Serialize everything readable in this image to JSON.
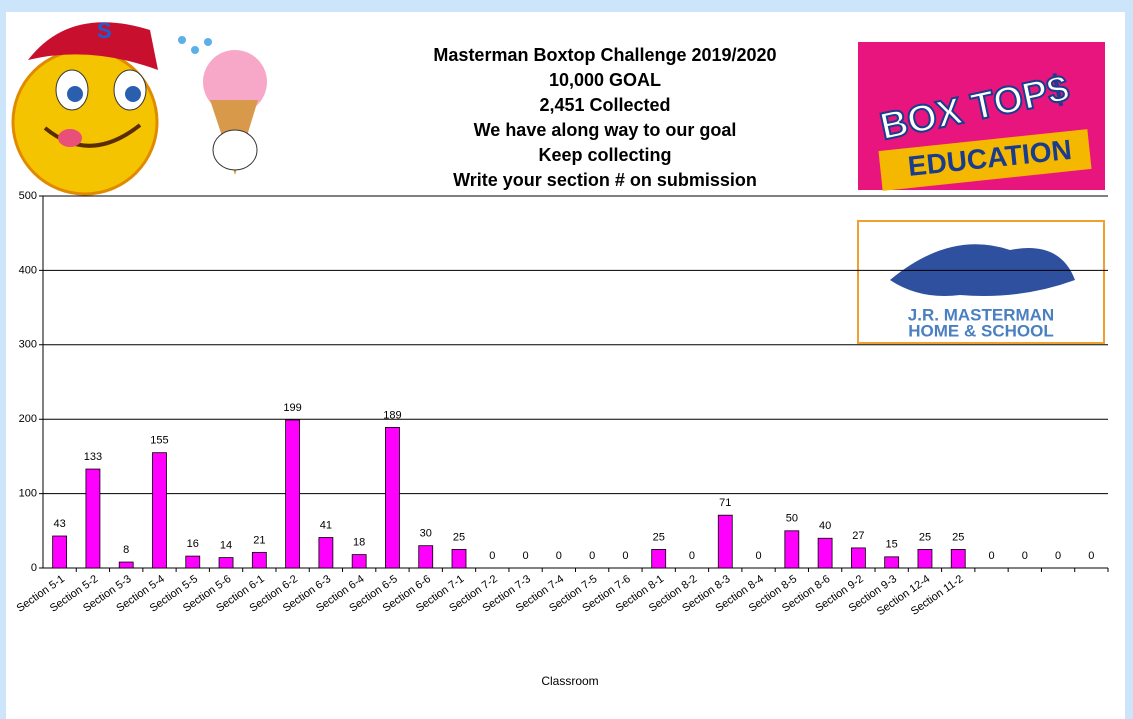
{
  "chart_data": {
    "type": "bar",
    "title": [
      "Masterman Boxtop Challenge 2019/2020",
      "10,000 GOAL",
      "2,451 Collected",
      "We have along way to our goal",
      "Keep collecting",
      "Write your section # on submission"
    ],
    "x_label": "Classroom",
    "categories": [
      "Section 5-1",
      "Section 5-2",
      "Section 5-3",
      "Section 5-4",
      "Section 5-5",
      "Section 5-6",
      "Section 6-1",
      "Section 6-2",
      "Section 6-3",
      "Section 6-4",
      "Section 6-5",
      "Section 6-6",
      "Section 7-1",
      "Section 7-2",
      "Section 7-3",
      "Section 7-4",
      "Section 7-5",
      "Section 7-6",
      "Section 8-1",
      "Section 8-2",
      "Section 8-3",
      "Section 8-4",
      "Section 8-5",
      "Section 8-6",
      "Section 9-2",
      "Section 9-3",
      "Section 12-4",
      "Section 11-2",
      null,
      null,
      null,
      null
    ],
    "values": [
      43,
      133,
      8,
      155,
      16,
      14,
      21,
      199,
      41,
      18,
      189,
      30,
      25,
      0,
      0,
      0,
      0,
      0,
      25,
      0,
      71,
      0,
      50,
      40,
      27,
      15,
      25,
      25,
      0,
      0,
      0,
      0
    ],
    "color": "#ff00ff",
    "ylim": [
      0,
      500
    ],
    "yticks": [
      0,
      100,
      200,
      300,
      400,
      500
    ],
    "grid": true
  },
  "logos": {
    "box_tops": "BOX TOP$",
    "education": "EDUCATION",
    "school_line_1": "J.R. MASTERMAN",
    "school_line_2": "HOME & SCHOOL"
  }
}
